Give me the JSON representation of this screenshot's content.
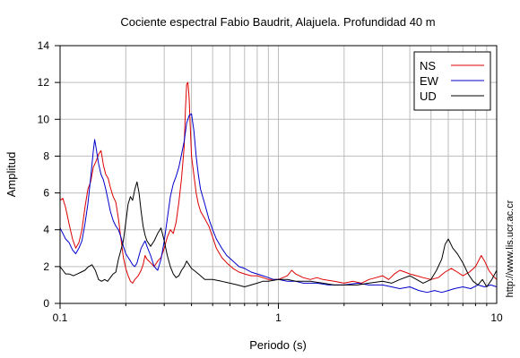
{
  "chart_data": {
    "type": "line",
    "title": "Cociente espectral Fabio Baudrit, Alajuela. Profundidad 40 m",
    "xlabel": "Periodo (s)",
    "ylabel": "Amplitud",
    "xscale": "log",
    "xlim": [
      0.1,
      10
    ],
    "ylim": [
      0,
      14
    ],
    "x_ticks": [
      0.1,
      1,
      10
    ],
    "x_tick_labels": [
      "0.1",
      "1",
      "10"
    ],
    "y_ticks": [
      0,
      2,
      4,
      6,
      8,
      10,
      12,
      14
    ],
    "y_tick_labels": [
      "0",
      "2",
      "4",
      "6",
      "8",
      "10",
      "12",
      "14"
    ],
    "grid": true,
    "legend_position": "top-right",
    "watermark": "http://www.lis.ucr.ac.cr",
    "series": [
      {
        "name": "NS",
        "color": "#dd0000",
        "points": [
          [
            0.1,
            5.6
          ],
          [
            0.103,
            5.7
          ],
          [
            0.106,
            5.2
          ],
          [
            0.11,
            4.3
          ],
          [
            0.114,
            3.5
          ],
          [
            0.118,
            3.0
          ],
          [
            0.122,
            3.3
          ],
          [
            0.126,
            4.0
          ],
          [
            0.13,
            5.2
          ],
          [
            0.134,
            6.2
          ],
          [
            0.138,
            6.6
          ],
          [
            0.142,
            7.4
          ],
          [
            0.146,
            7.7
          ],
          [
            0.15,
            8.1
          ],
          [
            0.154,
            8.3
          ],
          [
            0.158,
            7.5
          ],
          [
            0.162,
            7.0
          ],
          [
            0.166,
            6.8
          ],
          [
            0.17,
            6.3
          ],
          [
            0.175,
            5.8
          ],
          [
            0.18,
            5.5
          ],
          [
            0.185,
            4.6
          ],
          [
            0.19,
            3.5
          ],
          [
            0.195,
            2.5
          ],
          [
            0.2,
            1.9
          ],
          [
            0.205,
            1.5
          ],
          [
            0.21,
            1.2
          ],
          [
            0.215,
            1.1
          ],
          [
            0.22,
            1.3
          ],
          [
            0.228,
            1.5
          ],
          [
            0.235,
            1.8
          ],
          [
            0.24,
            2.1
          ],
          [
            0.245,
            2.6
          ],
          [
            0.25,
            2.4
          ],
          [
            0.26,
            2.2
          ],
          [
            0.27,
            2.0
          ],
          [
            0.28,
            2.3
          ],
          [
            0.29,
            2.5
          ],
          [
            0.3,
            3.0
          ],
          [
            0.31,
            3.6
          ],
          [
            0.32,
            4.0
          ],
          [
            0.33,
            3.8
          ],
          [
            0.34,
            4.4
          ],
          [
            0.35,
            5.5
          ],
          [
            0.36,
            6.8
          ],
          [
            0.37,
            8.5
          ],
          [
            0.375,
            10.5
          ],
          [
            0.38,
            11.9
          ],
          [
            0.385,
            12.0
          ],
          [
            0.39,
            11.2
          ],
          [
            0.395,
            9.5
          ],
          [
            0.4,
            8.0
          ],
          [
            0.41,
            7.0
          ],
          [
            0.42,
            6.0
          ],
          [
            0.43,
            5.4
          ],
          [
            0.44,
            5.0
          ],
          [
            0.46,
            4.6
          ],
          [
            0.48,
            4.2
          ],
          [
            0.5,
            3.6
          ],
          [
            0.52,
            3.0
          ],
          [
            0.55,
            2.5
          ],
          [
            0.58,
            2.2
          ],
          [
            0.62,
            1.9
          ],
          [
            0.66,
            1.7
          ],
          [
            0.7,
            1.6
          ],
          [
            0.75,
            1.5
          ],
          [
            0.8,
            1.5
          ],
          [
            0.85,
            1.4
          ],
          [
            0.9,
            1.3
          ],
          [
            0.95,
            1.3
          ],
          [
            1.0,
            1.3
          ],
          [
            1.1,
            1.5
          ],
          [
            1.15,
            1.8
          ],
          [
            1.2,
            1.6
          ],
          [
            1.3,
            1.4
          ],
          [
            1.4,
            1.3
          ],
          [
            1.5,
            1.4
          ],
          [
            1.6,
            1.3
          ],
          [
            1.8,
            1.2
          ],
          [
            2.0,
            1.1
          ],
          [
            2.2,
            1.2
          ],
          [
            2.4,
            1.1
          ],
          [
            2.6,
            1.3
          ],
          [
            2.8,
            1.4
          ],
          [
            3.0,
            1.5
          ],
          [
            3.2,
            1.3
          ],
          [
            3.4,
            1.6
          ],
          [
            3.6,
            1.8
          ],
          [
            3.8,
            1.7
          ],
          [
            4.0,
            1.6
          ],
          [
            4.3,
            1.5
          ],
          [
            4.6,
            1.4
          ],
          [
            5.0,
            1.3
          ],
          [
            5.4,
            1.4
          ],
          [
            5.8,
            1.7
          ],
          [
            6.2,
            1.9
          ],
          [
            6.6,
            1.7
          ],
          [
            7.0,
            1.5
          ],
          [
            7.5,
            1.7
          ],
          [
            8.0,
            2.0
          ],
          [
            8.5,
            2.6
          ],
          [
            8.8,
            2.3
          ],
          [
            9.2,
            1.8
          ],
          [
            9.6,
            1.5
          ],
          [
            10.0,
            1.3
          ]
        ]
      },
      {
        "name": "EW",
        "color": "#0000cc",
        "points": [
          [
            0.1,
            4.1
          ],
          [
            0.103,
            3.8
          ],
          [
            0.106,
            3.5
          ],
          [
            0.11,
            3.3
          ],
          [
            0.114,
            2.9
          ],
          [
            0.118,
            2.7
          ],
          [
            0.122,
            3.0
          ],
          [
            0.126,
            3.4
          ],
          [
            0.13,
            4.3
          ],
          [
            0.134,
            5.4
          ],
          [
            0.138,
            6.8
          ],
          [
            0.142,
            8.3
          ],
          [
            0.144,
            8.9
          ],
          [
            0.146,
            8.5
          ],
          [
            0.15,
            7.6
          ],
          [
            0.154,
            7.0
          ],
          [
            0.158,
            6.7
          ],
          [
            0.162,
            6.2
          ],
          [
            0.166,
            5.6
          ],
          [
            0.17,
            5.0
          ],
          [
            0.175,
            4.5
          ],
          [
            0.18,
            4.2
          ],
          [
            0.185,
            4.0
          ],
          [
            0.19,
            3.6
          ],
          [
            0.195,
            3.1
          ],
          [
            0.2,
            2.7
          ],
          [
            0.205,
            2.5
          ],
          [
            0.21,
            2.3
          ],
          [
            0.215,
            2.1
          ],
          [
            0.22,
            2.0
          ],
          [
            0.225,
            2.2
          ],
          [
            0.23,
            2.6
          ],
          [
            0.235,
            3.0
          ],
          [
            0.24,
            3.2
          ],
          [
            0.245,
            3.4
          ],
          [
            0.25,
            3.1
          ],
          [
            0.26,
            2.6
          ],
          [
            0.27,
            2.0
          ],
          [
            0.28,
            1.8
          ],
          [
            0.29,
            2.4
          ],
          [
            0.3,
            3.4
          ],
          [
            0.31,
            4.6
          ],
          [
            0.32,
            5.8
          ],
          [
            0.33,
            6.5
          ],
          [
            0.34,
            6.9
          ],
          [
            0.35,
            7.4
          ],
          [
            0.36,
            8.1
          ],
          [
            0.37,
            8.8
          ],
          [
            0.38,
            9.8
          ],
          [
            0.39,
            10.2
          ],
          [
            0.4,
            10.3
          ],
          [
            0.41,
            9.4
          ],
          [
            0.42,
            8.0
          ],
          [
            0.43,
            7.0
          ],
          [
            0.44,
            6.2
          ],
          [
            0.46,
            5.4
          ],
          [
            0.48,
            4.6
          ],
          [
            0.5,
            4.0
          ],
          [
            0.52,
            3.5
          ],
          [
            0.55,
            3.0
          ],
          [
            0.58,
            2.6
          ],
          [
            0.62,
            2.3
          ],
          [
            0.66,
            2.0
          ],
          [
            0.7,
            1.9
          ],
          [
            0.75,
            1.7
          ],
          [
            0.8,
            1.6
          ],
          [
            0.85,
            1.5
          ],
          [
            0.9,
            1.4
          ],
          [
            0.95,
            1.3
          ],
          [
            1.0,
            1.3
          ],
          [
            1.1,
            1.2
          ],
          [
            1.2,
            1.2
          ],
          [
            1.3,
            1.1
          ],
          [
            1.5,
            1.1
          ],
          [
            1.7,
            1.0
          ],
          [
            2.0,
            1.0
          ],
          [
            2.3,
            1.1
          ],
          [
            2.6,
            1.0
          ],
          [
            3.0,
            1.0
          ],
          [
            3.3,
            0.9
          ],
          [
            3.6,
            0.8
          ],
          [
            4.0,
            0.9
          ],
          [
            4.4,
            0.7
          ],
          [
            4.8,
            0.6
          ],
          [
            5.2,
            0.7
          ],
          [
            5.6,
            0.6
          ],
          [
            6.0,
            0.7
          ],
          [
            6.4,
            0.8
          ],
          [
            7.0,
            0.9
          ],
          [
            7.6,
            0.8
          ],
          [
            8.2,
            1.0
          ],
          [
            8.8,
            0.9
          ],
          [
            9.4,
            1.0
          ],
          [
            10.0,
            0.9
          ]
        ]
      },
      {
        "name": "UD",
        "color": "#000000",
        "points": [
          [
            0.1,
            2.0
          ],
          [
            0.103,
            1.8
          ],
          [
            0.106,
            1.6
          ],
          [
            0.11,
            1.6
          ],
          [
            0.115,
            1.5
          ],
          [
            0.12,
            1.6
          ],
          [
            0.125,
            1.7
          ],
          [
            0.13,
            1.8
          ],
          [
            0.135,
            2.0
          ],
          [
            0.14,
            2.1
          ],
          [
            0.145,
            1.8
          ],
          [
            0.15,
            1.3
          ],
          [
            0.155,
            1.2
          ],
          [
            0.16,
            1.3
          ],
          [
            0.165,
            1.2
          ],
          [
            0.17,
            1.4
          ],
          [
            0.175,
            1.6
          ],
          [
            0.18,
            1.7
          ],
          [
            0.185,
            2.4
          ],
          [
            0.19,
            2.9
          ],
          [
            0.195,
            3.4
          ],
          [
            0.2,
            4.4
          ],
          [
            0.205,
            5.4
          ],
          [
            0.21,
            5.8
          ],
          [
            0.215,
            5.6
          ],
          [
            0.22,
            6.2
          ],
          [
            0.225,
            6.6
          ],
          [
            0.23,
            6.0
          ],
          [
            0.235,
            5.0
          ],
          [
            0.24,
            4.2
          ],
          [
            0.245,
            3.7
          ],
          [
            0.25,
            3.4
          ],
          [
            0.26,
            3.1
          ],
          [
            0.27,
            3.4
          ],
          [
            0.28,
            3.8
          ],
          [
            0.29,
            4.1
          ],
          [
            0.3,
            3.4
          ],
          [
            0.31,
            2.6
          ],
          [
            0.32,
            2.0
          ],
          [
            0.33,
            1.6
          ],
          [
            0.34,
            1.4
          ],
          [
            0.35,
            1.5
          ],
          [
            0.36,
            1.8
          ],
          [
            0.37,
            2.0
          ],
          [
            0.38,
            2.3
          ],
          [
            0.39,
            2.1
          ],
          [
            0.4,
            1.9
          ],
          [
            0.42,
            1.7
          ],
          [
            0.44,
            1.5
          ],
          [
            0.46,
            1.3
          ],
          [
            0.5,
            1.3
          ],
          [
            0.55,
            1.2
          ],
          [
            0.6,
            1.1
          ],
          [
            0.65,
            1.0
          ],
          [
            0.7,
            0.9
          ],
          [
            0.75,
            1.0
          ],
          [
            0.8,
            1.1
          ],
          [
            0.85,
            1.2
          ],
          [
            0.9,
            1.2
          ],
          [
            1.0,
            1.3
          ],
          [
            1.1,
            1.3
          ],
          [
            1.2,
            1.2
          ],
          [
            1.4,
            1.2
          ],
          [
            1.6,
            1.1
          ],
          [
            1.8,
            1.0
          ],
          [
            2.0,
            1.0
          ],
          [
            2.3,
            1.0
          ],
          [
            2.6,
            1.1
          ],
          [
            3.0,
            1.2
          ],
          [
            3.3,
            1.1
          ],
          [
            3.6,
            1.3
          ],
          [
            4.0,
            1.5
          ],
          [
            4.3,
            1.3
          ],
          [
            4.6,
            1.1
          ],
          [
            5.0,
            1.3
          ],
          [
            5.3,
            1.8
          ],
          [
            5.6,
            2.4
          ],
          [
            5.8,
            3.2
          ],
          [
            6.0,
            3.5
          ],
          [
            6.3,
            3.0
          ],
          [
            6.6,
            2.7
          ],
          [
            7.0,
            2.2
          ],
          [
            7.4,
            1.6
          ],
          [
            7.8,
            1.2
          ],
          [
            8.2,
            1.0
          ],
          [
            8.6,
            1.3
          ],
          [
            9.0,
            0.9
          ],
          [
            9.5,
            1.3
          ],
          [
            10.0,
            1.8
          ]
        ]
      }
    ]
  }
}
